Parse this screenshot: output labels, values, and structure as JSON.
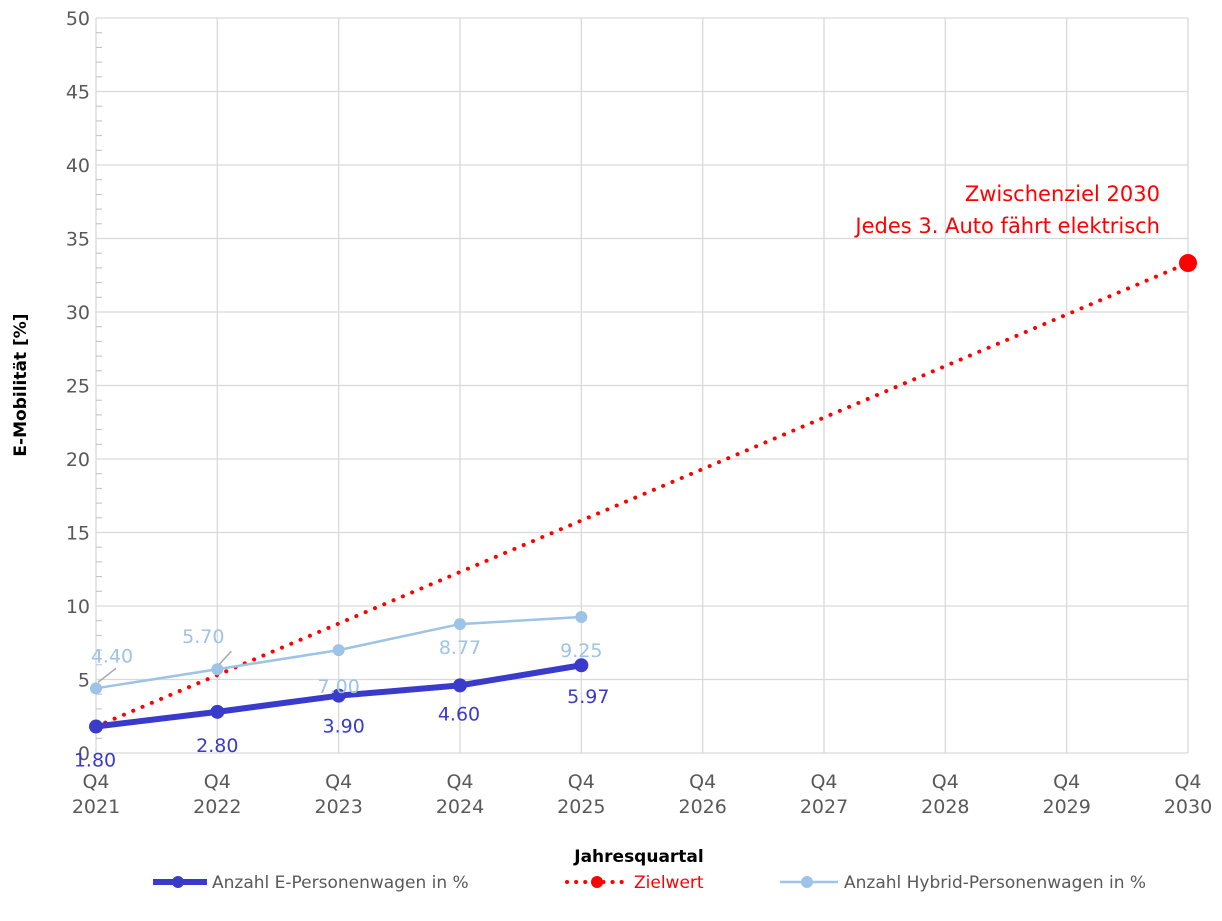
{
  "chart_data": {
    "type": "line",
    "xlabel": "Jahresquartal",
    "ylabel": "E-Mobilität [%]",
    "ylim": [
      0,
      50
    ],
    "ytick_step": 5,
    "grid": true,
    "legend_position": "bottom",
    "categories": [
      [
        "Q4",
        "2021"
      ],
      [
        "Q4",
        "2022"
      ],
      [
        "Q4",
        "2023"
      ],
      [
        "Q4",
        "2024"
      ],
      [
        "Q4",
        "2025"
      ],
      [
        "Q4",
        "2026"
      ],
      [
        "Q4",
        "2027"
      ],
      [
        "Q4",
        "2028"
      ],
      [
        "Q4",
        "2029"
      ],
      [
        "Q4",
        "2030"
      ]
    ],
    "series": [
      {
        "name": "Anzahl E-Personenwagen in %",
        "color": "#3a3acb",
        "style": "solid-thick",
        "values": [
          1.8,
          2.8,
          3.9,
          4.6,
          5.97,
          null,
          null,
          null,
          null,
          null
        ],
        "labels": [
          "1.80",
          "2.80",
          "3.90",
          "4.60",
          "5.97"
        ]
      },
      {
        "name": "Zielwert",
        "color": "#ff0000",
        "style": "dotted",
        "values": [
          1.8,
          null,
          null,
          null,
          null,
          null,
          null,
          null,
          null,
          33.33
        ],
        "end_marker": true
      },
      {
        "name": "Anzahl Hybrid-Personenwagen in %",
        "color": "#9dc3e6",
        "style": "solid-thin",
        "values": [
          4.4,
          5.7,
          7.0,
          8.77,
          9.25,
          null,
          null,
          null,
          null,
          null
        ],
        "labels": [
          "4.40",
          "5.70",
          "7.00",
          "8.77",
          "9.25"
        ]
      }
    ],
    "annotation": [
      "Zwischenziel 2030",
      "Jedes 3. Auto fährt elektrisch"
    ]
  }
}
